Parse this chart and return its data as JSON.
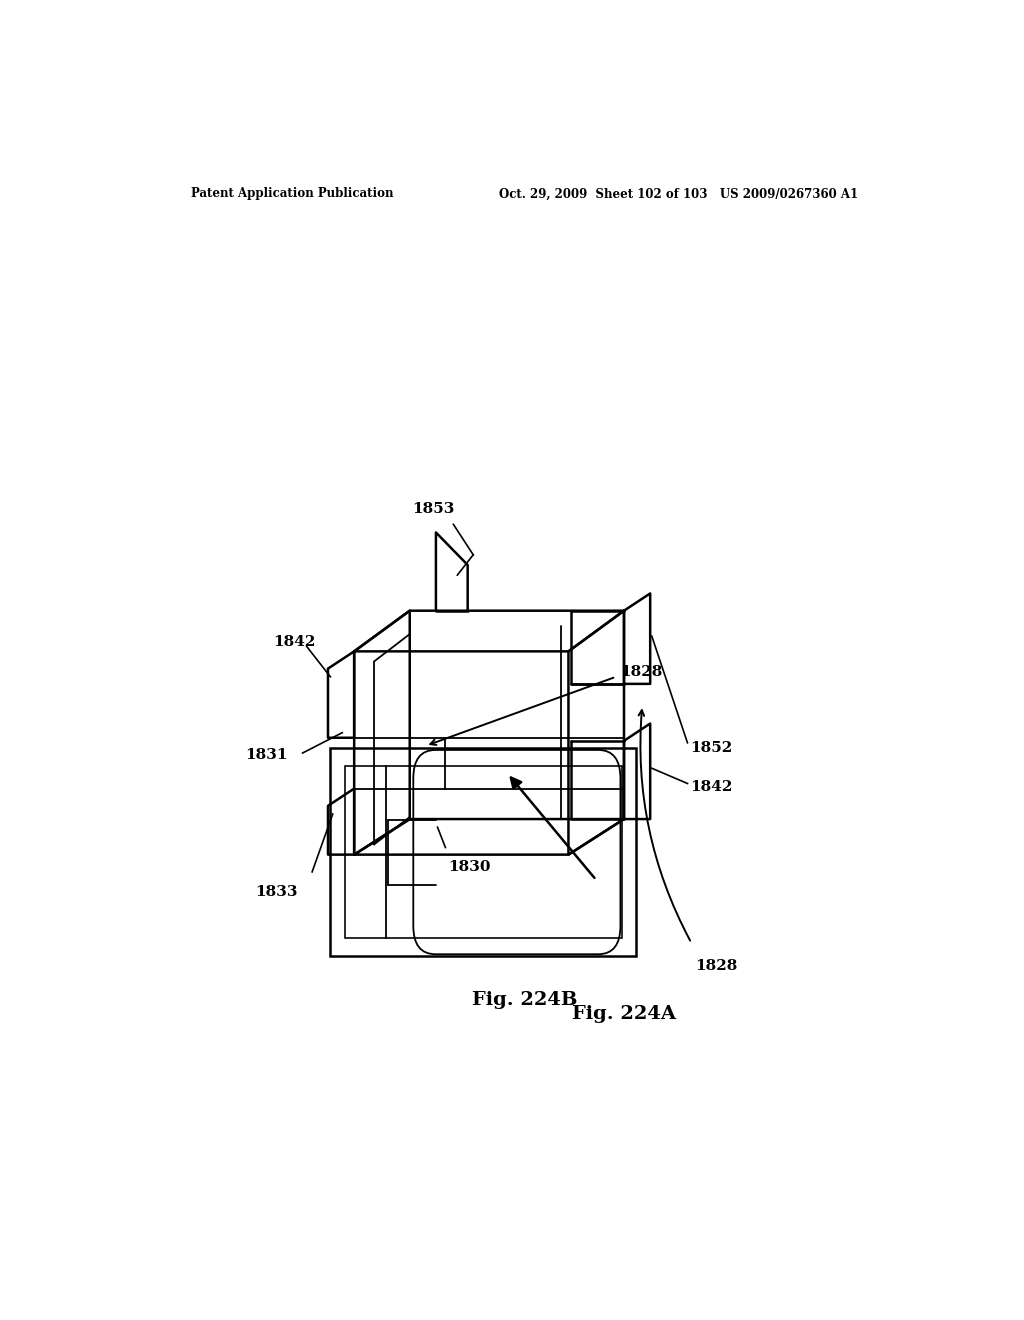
{
  "background_color": "#ffffff",
  "header_left": "Patent Application Publication",
  "header_right": "Oct. 29, 2009  Sheet 102 of 103   US 2009/0267360 A1",
  "fig_a_label": "Fig. 224A",
  "fig_b_label": "Fig. 224B"
}
